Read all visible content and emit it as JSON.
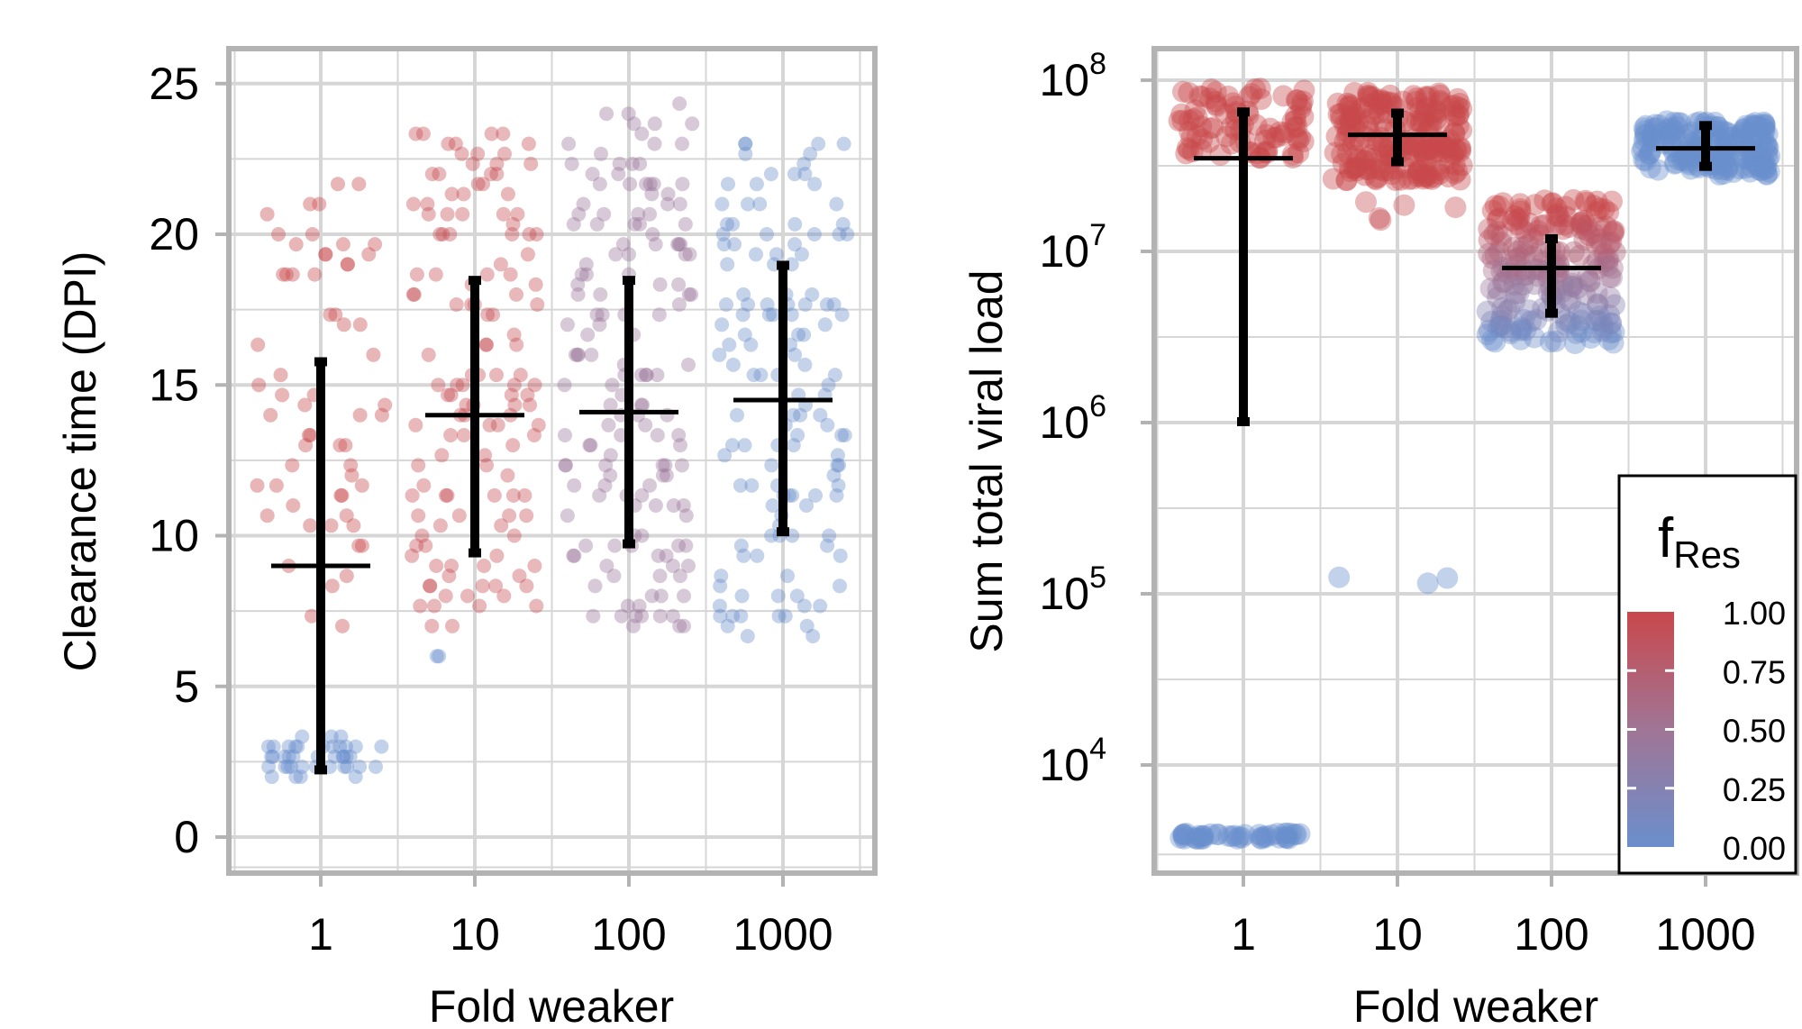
{
  "colors": {
    "fres_low": "#6a8fcc",
    "fres_mid": "#a07596",
    "fres_high": "#c9484c",
    "panel_border": "#b3b3b3",
    "grid": "#d6d6d6"
  },
  "chart_data": [
    {
      "type": "scatter",
      "title": "",
      "xlabel": "Fold weaker",
      "ylabel": "Clearance time (DPI)",
      "x_scale": "log",
      "categories": [
        "1",
        "10",
        "100",
        "1000"
      ],
      "yticks": [
        "0",
        "5",
        "10",
        "15",
        "20",
        "25"
      ],
      "ylim": [
        -1.5,
        26
      ],
      "grid": true,
      "point_groups": [
        {
          "category": "1",
          "n": 60,
          "ymin": 7,
          "ymax": 21.7,
          "fres": 1.0
        },
        {
          "category": "1",
          "n": 40,
          "ymin": 2.0,
          "ymax": 3.3,
          "fres": 0.0
        },
        {
          "category": "10",
          "n": 130,
          "ymin": 7,
          "ymax": 23.6,
          "fres": 0.95
        },
        {
          "category": "10",
          "n": 2,
          "ymin": 5.6,
          "ymax": 6.3,
          "fres": 0.0
        },
        {
          "category": "100",
          "n": 150,
          "ymin": 6.9,
          "ymax": 24.3,
          "fres": 0.45
        },
        {
          "category": "1000",
          "n": 130,
          "ymin": 6.7,
          "ymax": 23.6,
          "fres": 0.02
        }
      ],
      "summary": [
        {
          "category": "1",
          "mean": 9.0,
          "low": 2.2,
          "high": 15.8
        },
        {
          "category": "10",
          "mean": 14.0,
          "low": 9.4,
          "high": 18.5
        },
        {
          "category": "100",
          "mean": 14.1,
          "low": 9.7,
          "high": 18.5
        },
        {
          "category": "1000",
          "mean": 14.5,
          "low": 10.1,
          "high": 19.0
        }
      ]
    },
    {
      "type": "scatter",
      "title": "",
      "xlabel": "Fold weaker",
      "ylabel": "Sum total viral load",
      "x_scale": "log",
      "y_scale": "log",
      "categories": [
        "1",
        "10",
        "100",
        "1000"
      ],
      "yticks": [
        {
          "base": "10",
          "exp": "4",
          "value": 10000
        },
        {
          "base": "10",
          "exp": "5",
          "value": 100000
        },
        {
          "base": "10",
          "exp": "6",
          "value": 1000000
        },
        {
          "base": "10",
          "exp": "7",
          "value": 10000000
        },
        {
          "base": "10",
          "exp": "8",
          "value": 100000000
        }
      ],
      "ylim": [
        2800,
        140000000
      ],
      "grid": true,
      "point_groups": [
        {
          "category": "1",
          "n": 90,
          "ymin": 35000000,
          "ymax": 92000000,
          "fres": 1.0
        },
        {
          "category": "1",
          "n": 45,
          "ymin": 3700,
          "ymax": 4000,
          "fres": 0.0
        },
        {
          "category": "10",
          "n": 220,
          "ymin": 26000000,
          "ymax": 85000000,
          "fres": 1.0
        },
        {
          "category": "10",
          "n": 5,
          "ymin": 15000000,
          "ymax": 22000000,
          "fres": 0.95
        },
        {
          "category": "10",
          "n": 3,
          "ymin": 115000,
          "ymax": 125000,
          "fres": 0.0
        },
        {
          "category": "100",
          "n": 220,
          "ymin": 2900000,
          "ymax": 20000000,
          "fres": "gradient"
        },
        {
          "category": "1000",
          "n": 180,
          "ymin": 28000000,
          "ymax": 58000000,
          "fres": 0.0
        }
      ],
      "summary": [
        {
          "category": "1",
          "mean": 35000000,
          "low": 1000000,
          "high": 66000000
        },
        {
          "category": "10",
          "mean": 48000000,
          "low": 33000000,
          "high": 65000000
        },
        {
          "category": "100",
          "mean": 8000000,
          "low": 4300000,
          "high": 12000000
        },
        {
          "category": "1000",
          "mean": 40000000,
          "low": 31000000,
          "high": 55000000
        }
      ],
      "legend": {
        "title": "f",
        "title_sub": "Res",
        "placement": "bottom-right",
        "labels": [
          "1.00",
          "0.75",
          "0.50",
          "0.25",
          "0.00"
        ]
      }
    }
  ]
}
